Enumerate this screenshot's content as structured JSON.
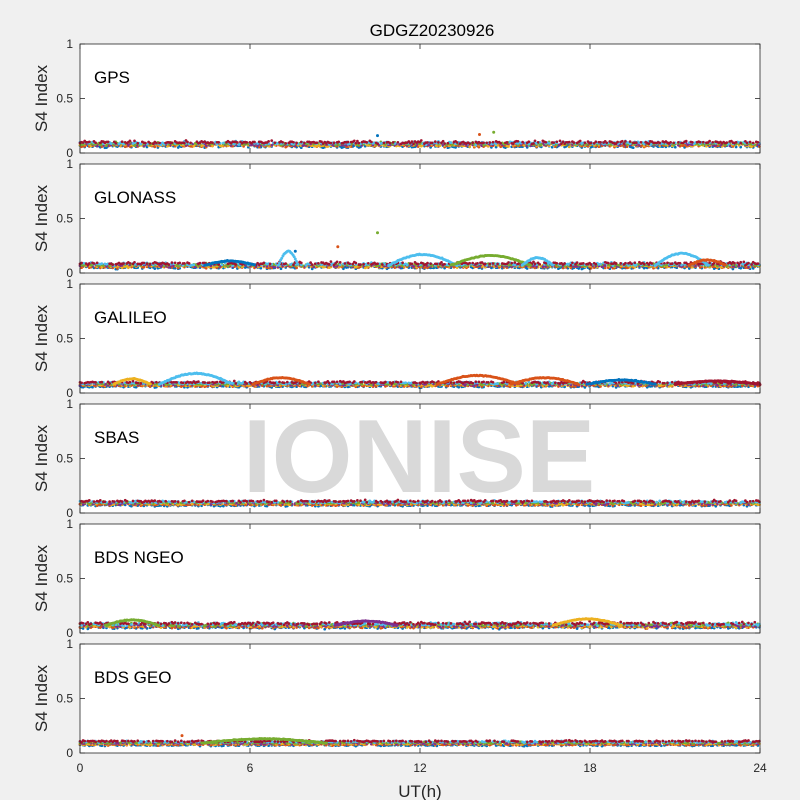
{
  "figure": {
    "title": "GDGZ20230926",
    "background_color": "#f0f0f0",
    "axes_color": "#262626",
    "watermark": "IONISE",
    "watermark_color": "#d9d9d9"
  },
  "chart_data": {
    "type": "scatter",
    "title": "GDGZ20230926",
    "xlabel": "UT(h)",
    "ylabel": "S4 Index",
    "xlim": [
      0,
      24
    ],
    "ylim": [
      0,
      1
    ],
    "xticks": [
      0,
      6,
      12,
      18,
      24
    ],
    "yticks": [
      0,
      0.5,
      1
    ],
    "ytick_labels": [
      "0",
      "0.5",
      "1"
    ],
    "grid": false,
    "series_colors": [
      "#0072bd",
      "#d95319",
      "#edb120",
      "#7e2f8e",
      "#77ac30",
      "#4dbeee",
      "#a2142f"
    ],
    "panels": [
      {
        "label": "GPS",
        "baseline": 0.08,
        "noise": 0.02,
        "spikes": [
          {
            "x": 14.1,
            "y": 0.17
          },
          {
            "x": 14.6,
            "y": 0.19
          },
          {
            "x": 10.5,
            "y": 0.16
          }
        ],
        "arcs": []
      },
      {
        "label": "GLONASS",
        "baseline": 0.07,
        "noise": 0.02,
        "spikes": [
          {
            "x": 9.1,
            "y": 0.24
          },
          {
            "x": 10.5,
            "y": 0.37
          },
          {
            "x": 7.6,
            "y": 0.2
          }
        ],
        "arcs": [
          {
            "x0": 4.4,
            "x1": 6.2,
            "peak": 0.11,
            "color": "#0072bd"
          },
          {
            "x0": 7.0,
            "x1": 7.7,
            "peak": 0.2,
            "color": "#4dbeee"
          },
          {
            "x0": 10.9,
            "x1": 13.3,
            "peak": 0.17,
            "color": "#4dbeee"
          },
          {
            "x0": 13.1,
            "x1": 15.9,
            "peak": 0.16,
            "color": "#77ac30"
          },
          {
            "x0": 15.6,
            "x1": 16.7,
            "peak": 0.14,
            "color": "#4dbeee"
          },
          {
            "x0": 20.3,
            "x1": 22.2,
            "peak": 0.18,
            "color": "#4dbeee"
          },
          {
            "x0": 21.5,
            "x1": 22.8,
            "peak": 0.12,
            "color": "#d95319"
          }
        ]
      },
      {
        "label": "GALILEO",
        "baseline": 0.08,
        "noise": 0.015,
        "spikes": [],
        "arcs": [
          {
            "x0": 1.2,
            "x1": 2.5,
            "peak": 0.13,
            "color": "#edb120"
          },
          {
            "x0": 2.8,
            "x1": 5.4,
            "peak": 0.18,
            "color": "#4dbeee"
          },
          {
            "x0": 6.1,
            "x1": 8.1,
            "peak": 0.14,
            "color": "#d95319"
          },
          {
            "x0": 12.6,
            "x1": 15.5,
            "peak": 0.16,
            "color": "#d95319"
          },
          {
            "x0": 15.2,
            "x1": 17.6,
            "peak": 0.14,
            "color": "#d95319"
          },
          {
            "x0": 17.9,
            "x1": 20.3,
            "peak": 0.12,
            "color": "#0072bd"
          },
          {
            "x0": 21.0,
            "x1": 24.0,
            "peak": 0.11,
            "color": "#a2142f"
          }
        ]
      },
      {
        "label": "SBAS",
        "baseline": 0.09,
        "noise": 0.015,
        "spikes": [],
        "arcs": []
      },
      {
        "label": "BDS NGEO",
        "baseline": 0.07,
        "noise": 0.02,
        "spikes": [],
        "arcs": [
          {
            "x0": 0.9,
            "x1": 2.8,
            "peak": 0.12,
            "color": "#77ac30"
          },
          {
            "x0": 9.0,
            "x1": 11.2,
            "peak": 0.11,
            "color": "#7e2f8e"
          },
          {
            "x0": 16.7,
            "x1": 19.1,
            "peak": 0.13,
            "color": "#edb120"
          }
        ]
      },
      {
        "label": "BDS GEO",
        "baseline": 0.09,
        "noise": 0.012,
        "spikes": [
          {
            "x": 3.6,
            "y": 0.16
          }
        ],
        "arcs": [
          {
            "x0": 4.3,
            "x1": 8.7,
            "peak": 0.13,
            "color": "#77ac30"
          }
        ]
      }
    ]
  }
}
